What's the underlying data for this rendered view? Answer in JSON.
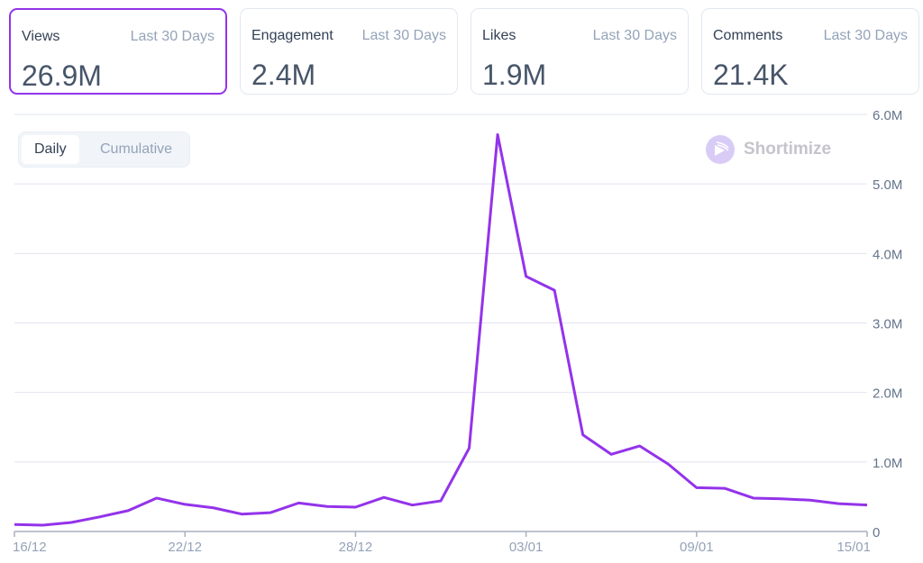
{
  "cards": [
    {
      "label": "Views",
      "period": "Last 30 Days",
      "value": "26.9M"
    },
    {
      "label": "Engagement",
      "period": "Last 30 Days",
      "value": "2.4M"
    },
    {
      "label": "Likes",
      "period": "Last 30 Days",
      "value": "1.9M"
    },
    {
      "label": "Comments",
      "period": "Last 30 Days",
      "value": "21.4K"
    }
  ],
  "toggle": {
    "daily": "Daily",
    "cumulative": "Cumulative"
  },
  "brand": "Shortimize",
  "colors": {
    "accent": "#9333ea",
    "grid": "#e2e4f0",
    "axis": "#94a3b8"
  },
  "chart_data": {
    "type": "line",
    "title": "",
    "xlabel": "",
    "ylabel": "",
    "x": [
      "16/12",
      "17/12",
      "18/12",
      "19/12",
      "20/12",
      "21/12",
      "22/12",
      "23/12",
      "24/12",
      "25/12",
      "26/12",
      "27/12",
      "28/12",
      "29/12",
      "30/12",
      "31/12",
      "01/01",
      "02/01",
      "03/01",
      "04/01",
      "05/01",
      "06/01",
      "07/01",
      "08/01",
      "09/01",
      "10/01",
      "11/01",
      "12/01",
      "13/01",
      "14/01",
      "15/01"
    ],
    "series": [
      {
        "name": "Views",
        "values": [
          0.1,
          0.09,
          0.13,
          0.21,
          0.3,
          0.48,
          0.39,
          0.34,
          0.25,
          0.27,
          0.41,
          0.36,
          0.35,
          0.49,
          0.38,
          0.44,
          1.2,
          5.71,
          3.67,
          3.47,
          1.39,
          1.11,
          1.23,
          0.97,
          0.63,
          0.62,
          0.48,
          0.47,
          0.45,
          0.4,
          0.38
        ]
      }
    ],
    "ylim": [
      0,
      6
    ],
    "yticks": [
      {
        "v": 0,
        "label": "0"
      },
      {
        "v": 1,
        "label": "1.0M"
      },
      {
        "v": 2,
        "label": "2.0M"
      },
      {
        "v": 3,
        "label": "3.0M"
      },
      {
        "v": 4,
        "label": "4.0M"
      },
      {
        "v": 5,
        "label": "5.0M"
      },
      {
        "v": 6,
        "label": "6.0M"
      }
    ],
    "xticks": [
      {
        "i": 0,
        "label": "16/12"
      },
      {
        "i": 6,
        "label": "22/12"
      },
      {
        "i": 12,
        "label": "28/12"
      },
      {
        "i": 18,
        "label": "03/01"
      },
      {
        "i": 24,
        "label": "09/01"
      },
      {
        "i": 30,
        "label": "15/01"
      }
    ],
    "grid": true,
    "legend": "none"
  }
}
